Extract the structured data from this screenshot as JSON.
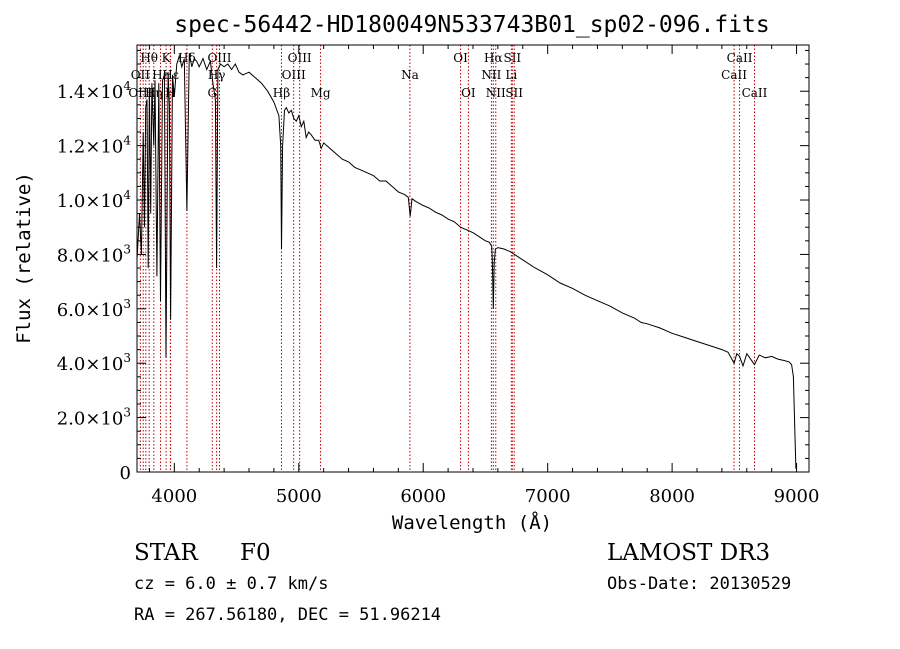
{
  "chart_data": {
    "type": "line",
    "title": "spec-56442-HD180049N533743B01_sp02-096.fits",
    "xlabel": "Wavelength (Å)",
    "ylabel": "Flux (relative)",
    "xlim": [
      3700,
      9100
    ],
    "ylim": [
      0,
      15700
    ],
    "grid": false,
    "x_ticks": [
      {
        "value": 4000,
        "label": "4000"
      },
      {
        "value": 5000,
        "label": "5000"
      },
      {
        "value": 6000,
        "label": "6000"
      },
      {
        "value": 7000,
        "label": "7000"
      },
      {
        "value": 8000,
        "label": "8000"
      },
      {
        "value": 9000,
        "label": "9000"
      }
    ],
    "y_ticks": [
      {
        "value": 0,
        "mant": "0",
        "exp": ""
      },
      {
        "value": 2000,
        "mant": "2.0×10",
        "exp": "3"
      },
      {
        "value": 4000,
        "mant": "4.0×10",
        "exp": "3"
      },
      {
        "value": 6000,
        "mant": "6.0×10",
        "exp": "3"
      },
      {
        "value": 8000,
        "mant": "8.0×10",
        "exp": "3"
      },
      {
        "value": 10000,
        "mant": "1.0×10",
        "exp": "4"
      },
      {
        "value": 12000,
        "mant": "1.2×10",
        "exp": "4"
      },
      {
        "value": 14000,
        "mant": "1.4×10",
        "exp": "4"
      }
    ],
    "series": [
      {
        "name": "spectrum",
        "x": [
          3700,
          3720,
          3735,
          3750,
          3760,
          3770,
          3780,
          3790,
          3800,
          3810,
          3820,
          3835,
          3845,
          3860,
          3875,
          3889,
          3905,
          3920,
          3933,
          3950,
          3960,
          3970,
          3985,
          4000,
          4020,
          4040,
          4060,
          4080,
          4101,
          4120,
          4140,
          4160,
          4180,
          4200,
          4230,
          4260,
          4290,
          4310,
          4330,
          4340,
          4350,
          4370,
          4400,
          4430,
          4460,
          4490,
          4520,
          4550,
          4600,
          4650,
          4700,
          4750,
          4800,
          4840,
          4855,
          4861,
          4870,
          4885,
          4900,
          4920,
          4940,
          4960,
          4980,
          5000,
          5020,
          5040,
          5060,
          5080,
          5100,
          5130,
          5160,
          5180,
          5200,
          5250,
          5300,
          5350,
          5400,
          5450,
          5500,
          5550,
          5600,
          5650,
          5700,
          5750,
          5800,
          5850,
          5880,
          5895,
          5910,
          5940,
          6000,
          6050,
          6100,
          6150,
          6200,
          6250,
          6300,
          6350,
          6400,
          6450,
          6500,
          6530,
          6550,
          6555,
          6563,
          6570,
          6580,
          6600,
          6650,
          6700,
          6750,
          6800,
          6900,
          7000,
          7100,
          7200,
          7300,
          7400,
          7500,
          7600,
          7700,
          7750,
          7800,
          7900,
          8000,
          8100,
          8200,
          8300,
          8400,
          8450,
          8498,
          8520,
          8542,
          8570,
          8600,
          8662,
          8700,
          8750,
          8800,
          8850,
          8900,
          8940,
          8960,
          8975,
          8985,
          8995
        ],
        "y": [
          7800,
          9500,
          8000,
          12500,
          9000,
          13400,
          13700,
          7500,
          14100,
          9500,
          14300,
          12000,
          14400,
          7200,
          14300,
          6300,
          14400,
          14600,
          4200,
          14700,
          13500,
          5600,
          14600,
          13800,
          15000,
          15300,
          14900,
          15200,
          9600,
          15400,
          14900,
          15200,
          15100,
          14900,
          15200,
          14800,
          15100,
          14300,
          13700,
          7500,
          14800,
          15000,
          14900,
          15000,
          14800,
          15000,
          14700,
          14600,
          14700,
          14500,
          14300,
          14000,
          13600,
          13100,
          12000,
          8200,
          12000,
          13300,
          13400,
          13200,
          13300,
          13000,
          12900,
          13100,
          12700,
          12900,
          12300,
          12500,
          12400,
          12200,
          12200,
          11900,
          12100,
          11900,
          11700,
          11500,
          11400,
          11200,
          11100,
          11000,
          10900,
          10700,
          10700,
          10500,
          10300,
          10200,
          10100,
          9400,
          10050,
          9950,
          9800,
          9700,
          9550,
          9450,
          9300,
          9200,
          9000,
          8900,
          8800,
          8650,
          8500,
          8450,
          8300,
          7800,
          6000,
          7700,
          8200,
          8250,
          8200,
          8100,
          7950,
          7800,
          7500,
          7250,
          6950,
          6750,
          6500,
          6300,
          6100,
          5850,
          5650,
          5500,
          5450,
          5300,
          5100,
          4950,
          4800,
          4650,
          4500,
          4400,
          4000,
          4350,
          4250,
          3900,
          4350,
          3950,
          4300,
          4200,
          4250,
          4150,
          4100,
          4050,
          3950,
          3500,
          1700,
          120
        ]
      }
    ],
    "line_labels": [
      {
        "label": "Hθ",
        "wave": 3798,
        "row": 1
      },
      {
        "label": "OII",
        "wave": 3727,
        "row": 2
      },
      {
        "label": "OIII",
        "wave": 3727,
        "row": 3
      },
      {
        "label": "K",
        "wave": 3934,
        "row": 1
      },
      {
        "label": "Hε",
        "wave": 3889,
        "row": 2
      },
      {
        "label": "Hη",
        "wave": 3835,
        "row": 3
      },
      {
        "label": "Hδ",
        "wave": 4101,
        "row": 1
      },
      {
        "label": "Hε",
        "wave": 3970,
        "row": 2
      },
      {
        "label": "H",
        "wave": 3968,
        "row": 3
      },
      {
        "label": "OIII",
        "wave": 4363,
        "row": 1
      },
      {
        "label": "Hγ",
        "wave": 4340,
        "row": 2
      },
      {
        "label": "G",
        "wave": 4305,
        "row": 3
      },
      {
        "label": "OIII",
        "wave": 5007,
        "row": 1
      },
      {
        "label": "OIII",
        "wave": 4959,
        "row": 2
      },
      {
        "label": "Hβ",
        "wave": 4861,
        "row": 3
      },
      {
        "label": "Mg",
        "wave": 5175,
        "row": 3
      },
      {
        "label": "Na",
        "wave": 5893,
        "row": 2
      },
      {
        "label": "OI",
        "wave": 6300,
        "row": 1
      },
      {
        "label": "OI",
        "wave": 6363,
        "row": 3
      },
      {
        "label": "Hα",
        "wave": 6563,
        "row": 1
      },
      {
        "label": "SII",
        "wave": 6716,
        "row": 1
      },
      {
        "label": "NII",
        "wave": 6548,
        "row": 2
      },
      {
        "label": "Li",
        "wave": 6708,
        "row": 2
      },
      {
        "label": "NII",
        "wave": 6583,
        "row": 3
      },
      {
        "label": "SII",
        "wave": 6731,
        "row": 3
      },
      {
        "label": "CaII",
        "wave": 8542,
        "row": 1
      },
      {
        "label": "CaII",
        "wave": 8498,
        "row": 2
      },
      {
        "label": "CaII",
        "wave": 8662,
        "row": 3
      }
    ],
    "line_marker_waves": [
      3727,
      3750,
      3771,
      3798,
      3835,
      3889,
      3934,
      3968,
      3970,
      4101,
      4305,
      4340,
      4363,
      4861,
      4959,
      5007,
      5175,
      5893,
      6300,
      6363,
      6548,
      6563,
      6583,
      6708,
      6716,
      6731,
      8498,
      8542,
      8662
    ],
    "line_marker_color": "#c00000",
    "spectrum_color": "#000000"
  },
  "info": {
    "class_label": "STAR",
    "subclass": "F0",
    "cz_line": "cz = 6.0 ± 0.7 km/s",
    "radec_line": "RA = 267.56180, DEC =  51.96214",
    "survey": "LAMOST DR3",
    "obs_date": "Obs-Date: 20130529"
  }
}
